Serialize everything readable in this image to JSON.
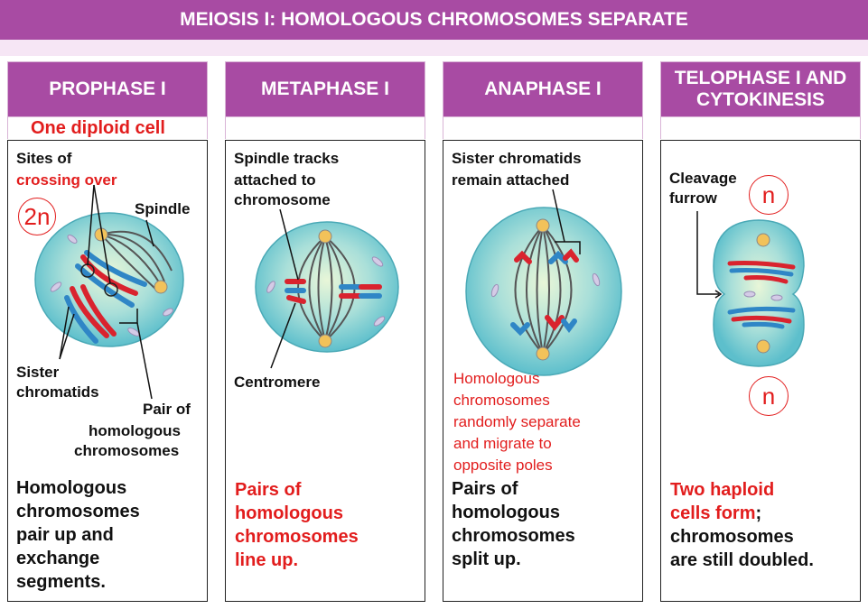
{
  "title": "MEIOSIS I: HOMOLOGOUS CHROMOSOMES SEPARATE",
  "phases": [
    {
      "name": "PROPHASE I",
      "subtitle": "One diploid cell",
      "labels": {
        "sites_of": "Sites of",
        "crossing_over": "crossing over",
        "spindle": "Spindle",
        "sister_chromatids_1": "Sister",
        "sister_chromatids_2": "chromatids",
        "pair_1": "Pair of",
        "pair_2": "homologous",
        "pair_3": "chromosomes",
        "ploidy": "2n"
      },
      "summary": [
        "Homologous",
        "chromosomes",
        "pair up and",
        "exchange",
        "segments."
      ]
    },
    {
      "name": "METAPHASE I",
      "labels": {
        "spindle_1": "Spindle tracks",
        "spindle_2": "attached to",
        "spindle_3": "chromosome",
        "centromere": "Centromere"
      },
      "summary": [
        "Pairs of",
        "homologous",
        "chromosomes",
        "line up."
      ]
    },
    {
      "name": "ANAPHASE I",
      "labels": {
        "sister_1": "Sister chromatids",
        "sister_2": "remain attached"
      },
      "note": [
        "Homologous",
        "chromosomes",
        "randomly separate",
        "and migrate to",
        "opposite poles"
      ],
      "summary": [
        "Pairs of",
        "homologous",
        "chromosomes",
        "split up."
      ]
    },
    {
      "name_line1": "TELOPHASE I AND",
      "name_line2": "CYTOKINESIS",
      "labels": {
        "cleavage_1": "Cleavage",
        "cleavage_2": "furrow",
        "ploidy_top": "n",
        "ploidy_bottom": "n"
      },
      "summary_red_1": "Two haploid",
      "summary_red_2": "cells form",
      "summary_punct": ";",
      "summary": [
        "chromosomes",
        "are still doubled."
      ]
    }
  ],
  "colors": {
    "banner": "#a84ba3",
    "accent_red": "#e21d1d",
    "cell_fill": "#7fd0d8",
    "chrom_red": "#d9232e",
    "chrom_blue": "#2f86c6"
  }
}
